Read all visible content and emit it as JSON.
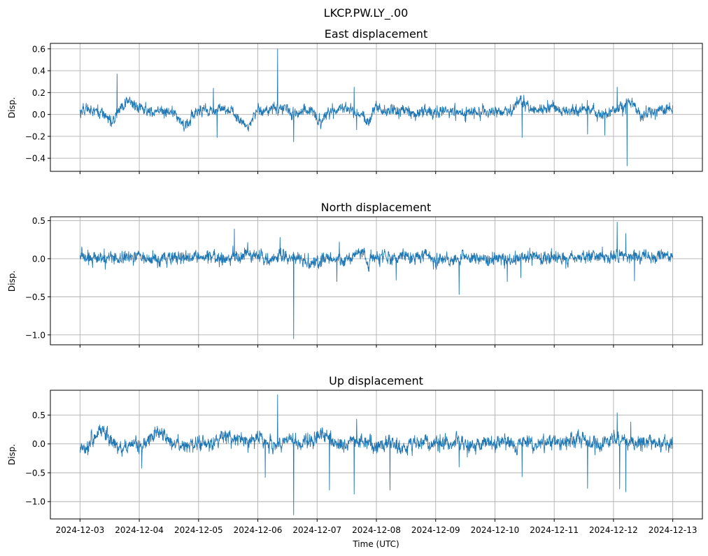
{
  "figure": {
    "suptitle": "LKCP.PW.LY_.00",
    "xlabel": "Time (UTC)"
  },
  "colors": {
    "line": "#1f77b4",
    "grid": "#b0b0b0",
    "axes": "#000000"
  },
  "chart_data": [
    {
      "type": "line",
      "title": "East displacement",
      "xlabel": "",
      "ylabel": "Disp.",
      "xlim": [
        "2024-12-02T12:00",
        "2024-12-13T12:00"
      ],
      "ylim": [
        -0.52,
        0.65
      ],
      "yticks": [
        -0.4,
        -0.2,
        0.0,
        0.2,
        0.4,
        0.6
      ],
      "ytick_labels": [
        "−0.4",
        "−0.2",
        "0.0",
        "0.2",
        "0.4",
        "0.6"
      ],
      "grid": true,
      "series": [
        {
          "x_range": [
            "2024-12-03T00:00",
            "2024-12-13T00:00"
          ],
          "noise": 0.018,
          "baseline": [
            0.03,
            0.05,
            0.03,
            0.0,
            -0.08,
            0.05,
            0.15,
            0.06,
            0.05,
            0.03,
            0.04,
            0.03,
            -0.02,
            -0.1,
            -0.04,
            0.05,
            0.04,
            0.03,
            0.06,
            0.02,
            -0.05,
            -0.12,
            0.04,
            0.03,
            0.05,
            0.06,
            0.04,
            0.0,
            0.05,
            0.03,
            -0.08,
            0.02,
            0.05,
            0.06,
            0.03,
            0.01,
            -0.06,
            0.06,
            0.03,
            0.05,
            0.02,
            0.06,
            -0.02,
            0.04,
            0.02,
            0.03,
            0.02,
            0.05,
            0.0,
            0.03,
            0.01,
            0.03,
            0.04,
            0.02,
            0.05,
            0.14,
            0.06,
            0.03,
            0.05,
            0.07,
            0.02,
            0.04,
            0.03,
            0.06,
            0.02,
            0.0,
            0.03,
            0.05,
            0.08,
            0.12,
            -0.03,
            0.04,
            0.03,
            0.05,
            0.06
          ],
          "spikes": [
            {
              "x": "2024-12-03T15:00",
              "y": 0.37
            },
            {
              "x": "2024-12-05T06:00",
              "y": 0.24
            },
            {
              "x": "2024-12-05T07:30",
              "y": -0.21
            },
            {
              "x": "2024-12-06T08:00",
              "y": 0.6
            },
            {
              "x": "2024-12-06T14:30",
              "y": -0.25
            },
            {
              "x": "2024-12-07T15:00",
              "y": 0.25
            },
            {
              "x": "2024-12-07T16:00",
              "y": -0.14
            },
            {
              "x": "2024-12-10T11:00",
              "y": -0.21
            },
            {
              "x": "2024-12-11T13:30",
              "y": -0.18
            },
            {
              "x": "2024-12-11T20:30",
              "y": -0.19
            },
            {
              "x": "2024-12-12T01:30",
              "y": 0.25
            },
            {
              "x": "2024-12-12T05:30",
              "y": -0.47
            }
          ]
        }
      ]
    },
    {
      "type": "line",
      "title": "North displacement",
      "xlabel": "",
      "ylabel": "Disp.",
      "xlim": [
        "2024-12-02T12:00",
        "2024-12-13T12:00"
      ],
      "ylim": [
        -1.13,
        0.55
      ],
      "yticks": [
        -1.0,
        -0.5,
        0.0,
        0.5
      ],
      "ytick_labels": [
        "−1.0",
        "−0.5",
        "0.0",
        "0.5"
      ],
      "grid": true,
      "series": [
        {
          "x_range": [
            "2024-12-03T00:00",
            "2024-12-13T00:00"
          ],
          "noise": 0.03,
          "baseline": [
            0.02,
            0.03,
            0.01,
            0.0,
            0.03,
            -0.02,
            0.02,
            0.04,
            0.0,
            -0.02,
            0.0,
            0.01,
            0.02,
            0.03,
            0.0,
            -0.01,
            0.02,
            0.0,
            -0.02,
            0.01,
            0.04,
            0.06,
            0.02,
            0.0,
            -0.02,
            0.03,
            0.05,
            0.0,
            -0.04,
            -0.05,
            -0.03,
            0.02,
            0.0,
            -0.03,
            0.03,
            0.1,
            0.0,
            0.01,
            0.02,
            -0.01,
            0.03,
            0.02,
            0.0,
            0.04,
            -0.03,
            0.01,
            0.0,
            -0.03,
            0.02,
            0.0,
            -0.01,
            -0.02,
            -0.01,
            0.0,
            -0.02,
            0.02,
            0.04,
            0.02,
            0.01,
            0.03,
            0.02,
            0.0,
            0.03,
            0.01,
            0.04,
            0.02,
            0.0,
            0.02,
            0.04,
            0.03,
            0.03,
            0.05,
            0.02,
            0.03,
            0.03
          ],
          "spikes": [
            {
              "x": "2024-12-05T14:30",
              "y": 0.39
            },
            {
              "x": "2024-12-06T09:00",
              "y": 0.28
            },
            {
              "x": "2024-12-06T14:30",
              "y": -1.05
            },
            {
              "x": "2024-12-07T08:00",
              "y": -0.3
            },
            {
              "x": "2024-12-07T09:00",
              "y": 0.22
            },
            {
              "x": "2024-12-08T08:00",
              "y": -0.28
            },
            {
              "x": "2024-12-09T09:30",
              "y": -0.47
            },
            {
              "x": "2024-12-10T05:00",
              "y": -0.3
            },
            {
              "x": "2024-12-10T10:30",
              "y": -0.25
            },
            {
              "x": "2024-12-12T01:30",
              "y": 0.48
            },
            {
              "x": "2024-12-12T05:00",
              "y": 0.33
            },
            {
              "x": "2024-12-12T08:30",
              "y": -0.29
            }
          ]
        }
      ]
    },
    {
      "type": "line",
      "title": "Up displacement",
      "xlabel": "Time (UTC)",
      "ylabel": "Disp.",
      "xlim": [
        "2024-12-02T12:00",
        "2024-12-13T12:00"
      ],
      "ylim": [
        -1.3,
        0.93
      ],
      "yticks": [
        -1.0,
        -0.5,
        0.0,
        0.5
      ],
      "ytick_labels": [
        "−1.0",
        "−0.5",
        "0.0",
        "0.5"
      ],
      "grid": true,
      "xticks": [
        "2024-12-03",
        "2024-12-04",
        "2024-12-05",
        "2024-12-06",
        "2024-12-07",
        "2024-12-08",
        "2024-12-09",
        "2024-12-10",
        "2024-12-11",
        "2024-12-12",
        "2024-12-13"
      ],
      "series": [
        {
          "x_range": [
            "2024-12-03T00:00",
            "2024-12-13T00:00"
          ],
          "noise": 0.045,
          "baseline": [
            -0.05,
            -0.03,
            0.15,
            0.22,
            0.05,
            -0.1,
            -0.05,
            0.0,
            -0.03,
            0.18,
            0.2,
            0.05,
            0.0,
            -0.05,
            -0.02,
            0.0,
            -0.03,
            0.05,
            0.12,
            0.08,
            0.05,
            0.0,
            0.15,
            0.1,
            -0.05,
            0.0,
            0.1,
            0.05,
            0.02,
            0.08,
            0.15,
            0.1,
            0.0,
            -0.05,
            0.05,
            0.08,
            0.0,
            -0.05,
            0.0,
            0.05,
            -0.1,
            0.0,
            0.02,
            0.05,
            -0.02,
            0.0,
            0.03,
            0.05,
            0.0,
            -0.03,
            0.0,
            0.02,
            0.0,
            0.05,
            0.02,
            0.0,
            0.05,
            0.0,
            0.03,
            0.06,
            0.0,
            0.08,
            0.1,
            0.05,
            0.0,
            -0.03,
            0.02,
            0.1,
            0.05,
            0.0,
            0.02,
            0.05,
            0.0,
            0.02,
            0.0
          ],
          "spikes": [
            {
              "x": "2024-12-04T01:00",
              "y": -0.42
            },
            {
              "x": "2024-12-06T03:00",
              "y": -0.58
            },
            {
              "x": "2024-12-06T08:00",
              "y": 0.85
            },
            {
              "x": "2024-12-06T14:30",
              "y": -1.23
            },
            {
              "x": "2024-12-07T05:00",
              "y": -0.8
            },
            {
              "x": "2024-12-07T15:00",
              "y": -0.87
            },
            {
              "x": "2024-12-07T16:00",
              "y": 0.43
            },
            {
              "x": "2024-12-08T05:30",
              "y": -0.8
            },
            {
              "x": "2024-12-09T09:30",
              "y": -0.4
            },
            {
              "x": "2024-12-10T11:00",
              "y": -0.57
            },
            {
              "x": "2024-12-11T13:30",
              "y": -0.77
            },
            {
              "x": "2024-12-12T01:30",
              "y": 0.54
            },
            {
              "x": "2024-12-12T02:30",
              "y": -0.78
            },
            {
              "x": "2024-12-12T05:00",
              "y": -0.83
            },
            {
              "x": "2024-12-12T07:00",
              "y": 0.38
            }
          ]
        }
      ]
    }
  ]
}
